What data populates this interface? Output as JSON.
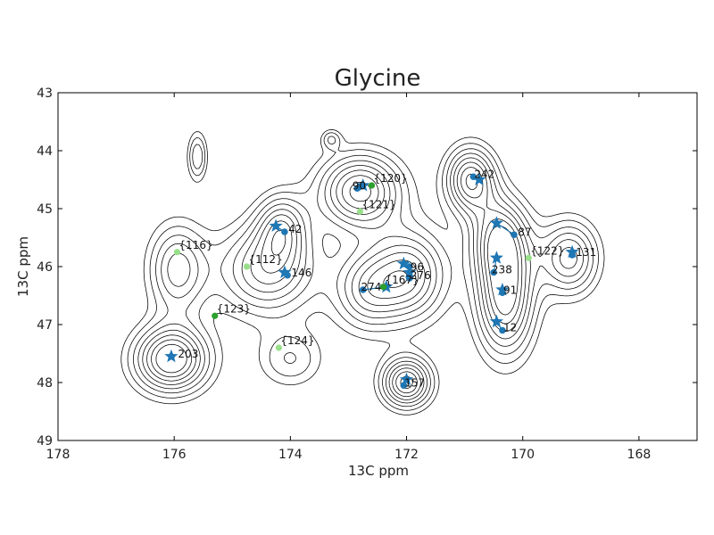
{
  "chart_data": {
    "type": "scatter",
    "title": "Glycine",
    "xlabel": "13C ppm",
    "ylabel": "13C ppm",
    "xlim": [
      178,
      167
    ],
    "ylim": [
      49,
      43
    ],
    "x_ticks": [
      178,
      176,
      174,
      172,
      170,
      168
    ],
    "y_ticks": [
      43,
      44,
      45,
      46,
      47,
      48,
      49
    ],
    "grid": false,
    "colors": {
      "assigned": "#1f77b4",
      "predicted": "#1f77b4",
      "unassigned_dark": "#2ca02c",
      "unassigned_light": "#98df8a",
      "contour": "#000000"
    },
    "contour_peaks": [
      {
        "x": 176.05,
        "y": 47.6,
        "sx": 0.45,
        "sy": 0.4,
        "a": 1.0
      },
      {
        "x": 175.95,
        "y": 46.05,
        "sx": 0.35,
        "sy": 0.55,
        "a": 0.6
      },
      {
        "x": 175.6,
        "y": 44.1,
        "sx": 0.12,
        "sy": 0.3,
        "a": 0.45
      },
      {
        "x": 174.4,
        "y": 46.05,
        "sx": 0.6,
        "sy": 0.55,
        "a": 0.7
      },
      {
        "x": 174.15,
        "y": 45.3,
        "sx": 0.3,
        "sy": 0.4,
        "a": 0.55
      },
      {
        "x": 174.0,
        "y": 47.6,
        "sx": 0.4,
        "sy": 0.35,
        "a": 0.35
      },
      {
        "x": 172.8,
        "y": 44.7,
        "sx": 0.5,
        "sy": 0.45,
        "a": 0.9
      },
      {
        "x": 172.7,
        "y": 46.4,
        "sx": 0.4,
        "sy": 0.5,
        "a": 0.55
      },
      {
        "x": 171.95,
        "y": 46.15,
        "sx": 0.45,
        "sy": 0.55,
        "a": 0.75
      },
      {
        "x": 172.0,
        "y": 48.0,
        "sx": 0.3,
        "sy": 0.3,
        "a": 0.9
      },
      {
        "x": 170.9,
        "y": 44.5,
        "sx": 0.3,
        "sy": 0.4,
        "a": 0.85
      },
      {
        "x": 170.4,
        "y": 45.5,
        "sx": 0.35,
        "sy": 0.5,
        "a": 0.7
      },
      {
        "x": 170.3,
        "y": 46.55,
        "sx": 0.35,
        "sy": 0.7,
        "a": 0.9
      },
      {
        "x": 169.2,
        "y": 45.85,
        "sx": 0.35,
        "sy": 0.45,
        "a": 0.7
      },
      {
        "x": 173.3,
        "y": 43.8,
        "sx": 0.12,
        "sy": 0.12,
        "a": 0.32
      }
    ],
    "contour_levels": [
      0.16,
      0.25,
      0.35,
      0.45,
      0.55,
      0.65,
      0.75,
      0.85
    ],
    "assigned_peaks": [
      {
        "label": "42",
        "star": [
          174.25,
          45.3
        ],
        "point": [
          174.1,
          45.4
        ]
      },
      {
        "label": "146",
        "star": [
          174.1,
          46.1
        ],
        "point": [
          174.05,
          46.15
        ]
      },
      {
        "label": "90",
        "star": [
          172.75,
          44.6
        ],
        "point": [
          172.85,
          44.65
        ]
      },
      {
        "label": "96",
        "star": [
          172.05,
          45.95
        ],
        "point": [
          171.95,
          46.0
        ]
      },
      {
        "label": "276",
        "star": [
          171.95,
          46.1
        ],
        "point": [
          171.95,
          46.2
        ]
      },
      {
        "label": "274",
        "star": [
          172.35,
          46.35
        ],
        "point": [
          172.75,
          46.4
        ]
      },
      {
        "label": "157",
        "star": [
          172.0,
          47.95
        ],
        "point": [
          172.05,
          48.05
        ]
      },
      {
        "label": "242",
        "star": [
          170.75,
          44.5
        ],
        "point": [
          170.85,
          44.45
        ]
      },
      {
        "label": "87",
        "star": [
          170.45,
          45.25
        ],
        "point": [
          170.15,
          45.45
        ]
      },
      {
        "label": "238",
        "star": [
          170.45,
          45.85
        ],
        "point": [
          170.5,
          46.1
        ]
      },
      {
        "label": "91",
        "star": [
          170.35,
          46.4
        ],
        "point": [
          170.35,
          46.45
        ]
      },
      {
        "label": "12",
        "star": [
          170.45,
          46.95
        ],
        "point": [
          170.35,
          47.1
        ]
      },
      {
        "label": "131",
        "star": [
          169.15,
          45.75
        ],
        "point": [
          169.15,
          45.8
        ]
      },
      {
        "label": "203",
        "star": [
          176.05,
          47.55
        ],
        "point": [
          176.05,
          47.55
        ]
      }
    ],
    "label_positions": [
      {
        "label": "42",
        "x": 174.05,
        "y": 45.4
      },
      {
        "label": "146",
        "x": 174.0,
        "y": 46.15
      },
      {
        "label": "90",
        "x": 172.95,
        "y": 44.65
      },
      {
        "label": "96",
        "x": 171.95,
        "y": 46.05
      },
      {
        "label": "276",
        "x": 171.95,
        "y": 46.2
      },
      {
        "label": "274",
        "x": 172.8,
        "y": 46.4
      },
      {
        "label": "157",
        "x": 172.05,
        "y": 48.05
      },
      {
        "label": "242",
        "x": 170.85,
        "y": 44.45
      },
      {
        "label": "87",
        "x": 170.1,
        "y": 45.45
      },
      {
        "label": "238",
        "x": 170.55,
        "y": 46.1
      },
      {
        "label": "91",
        "x": 170.35,
        "y": 46.45
      },
      {
        "label": "12",
        "x": 170.35,
        "y": 47.1
      },
      {
        "label": "131",
        "x": 169.1,
        "y": 45.8
      },
      {
        "label": "203",
        "x": 175.95,
        "y": 47.55
      }
    ],
    "unassigned_peaks": [
      {
        "label": "{116}",
        "x": 175.95,
        "y": 45.75,
        "shade": "light"
      },
      {
        "label": "{112}",
        "x": 174.75,
        "y": 46.0,
        "shade": "light"
      },
      {
        "label": "{123}",
        "x": 175.3,
        "y": 46.85,
        "shade": "dark"
      },
      {
        "label": "{124}",
        "x": 174.2,
        "y": 47.4,
        "shade": "light"
      },
      {
        "label": "{120}",
        "x": 172.6,
        "y": 44.6,
        "shade": "dark"
      },
      {
        "label": "{121}",
        "x": 172.8,
        "y": 45.05,
        "shade": "light"
      },
      {
        "label": "{167}",
        "x": 172.4,
        "y": 46.35,
        "shade": "dark"
      },
      {
        "label": "{122}",
        "x": 169.9,
        "y": 45.85,
        "shade": "light"
      }
    ]
  }
}
